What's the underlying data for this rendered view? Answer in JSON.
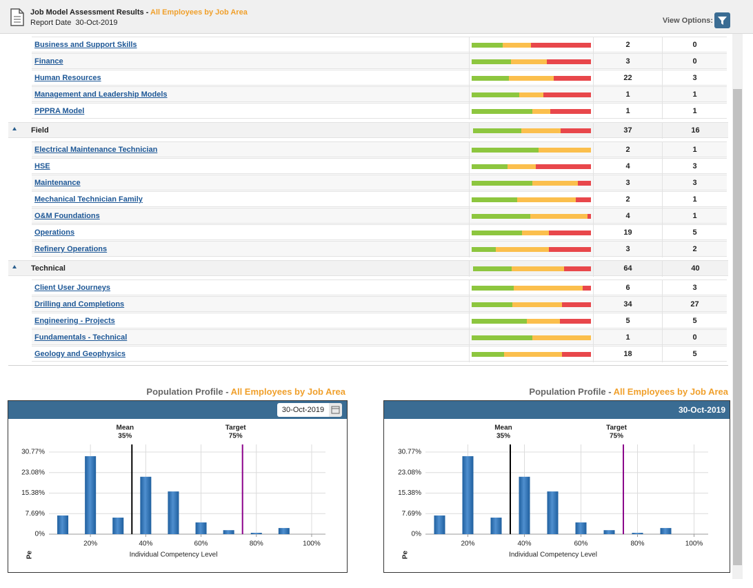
{
  "header": {
    "title": "Job Model Assessment Results -",
    "highlight": "All Employees by Job Area",
    "date_label": "Report Date",
    "date": "30-Oct-2019",
    "view_options": "View Options:"
  },
  "table": {
    "colors": [
      "#8dc63f",
      "#fbbf4d",
      "#e8474b"
    ],
    "rows": [
      {
        "label": "Business and Support Skills",
        "group": false,
        "distribution": [
          26,
          24,
          50
        ],
        "count": 2,
        "value2": 0
      },
      {
        "label": "Finance",
        "group": false,
        "distribution": [
          33,
          30,
          37
        ],
        "count": 3,
        "value2": 0
      },
      {
        "label": "Human Resources",
        "group": false,
        "distribution": [
          31,
          38,
          31
        ],
        "count": 22,
        "value2": 3
      },
      {
        "label": "Management and Leadership Models",
        "group": false,
        "distribution": [
          40,
          20,
          40
        ],
        "count": 1,
        "value2": 1
      },
      {
        "label": "PPPRA Model",
        "group": false,
        "distribution": [
          51,
          15,
          34
        ],
        "count": 1,
        "value2": 1
      },
      {
        "label": "Field",
        "group": true,
        "distribution": [
          41,
          33,
          26
        ],
        "count": 37,
        "value2": 16
      },
      {
        "label": "Electrical Maintenance Technician",
        "group": false,
        "distribution": [
          56,
          44,
          0
        ],
        "count": 2,
        "value2": 1
      },
      {
        "label": "HSE",
        "group": false,
        "distribution": [
          30,
          24,
          46
        ],
        "count": 4,
        "value2": 3
      },
      {
        "label": "Maintenance",
        "group": false,
        "distribution": [
          51,
          38,
          11
        ],
        "count": 3,
        "value2": 3
      },
      {
        "label": "Mechanical Technician Family",
        "group": false,
        "distribution": [
          38,
          49,
          13
        ],
        "count": 2,
        "value2": 1
      },
      {
        "label": "O&M Foundations",
        "group": false,
        "distribution": [
          49,
          48,
          3
        ],
        "count": 4,
        "value2": 1
      },
      {
        "label": "Operations",
        "group": false,
        "distribution": [
          42,
          23,
          35
        ],
        "count": 19,
        "value2": 5
      },
      {
        "label": "Refinery Operations",
        "group": false,
        "distribution": [
          20,
          45,
          35
        ],
        "count": 3,
        "value2": 2
      },
      {
        "label": "Technical",
        "group": true,
        "distribution": [
          33,
          44,
          23
        ],
        "count": 64,
        "value2": 40
      },
      {
        "label": "Client User Journeys",
        "group": false,
        "distribution": [
          35,
          58,
          7
        ],
        "count": 6,
        "value2": 3
      },
      {
        "label": "Drilling and Completions",
        "group": false,
        "distribution": [
          34,
          42,
          24
        ],
        "count": 34,
        "value2": 27
      },
      {
        "label": "Engineering - Projects",
        "group": false,
        "distribution": [
          46,
          28,
          26
        ],
        "count": 5,
        "value2": 5
      },
      {
        "label": "Fundamentals - Technical",
        "group": false,
        "distribution": [
          51,
          49,
          0
        ],
        "count": 1,
        "value2": 0
      },
      {
        "label": "Geology and Geophysics",
        "group": false,
        "distribution": [
          27,
          49,
          24
        ],
        "count": 18,
        "value2": 5
      }
    ]
  },
  "chart_data": [
    {
      "type": "bar",
      "title": "Population Profile -",
      "highlight": "All Employees by Job Area",
      "date": "30-Oct-2019",
      "date_input": true,
      "x": [
        10,
        20,
        30,
        40,
        50,
        60,
        70,
        80,
        90
      ],
      "values": [
        7.0,
        29.2,
        6.2,
        21.5,
        16.0,
        4.4,
        1.5,
        0.5,
        2.3
      ],
      "color": "#1f5f9e",
      "xlim": [
        5,
        105
      ],
      "xticks": [
        {
          "value": 20,
          "label": "20%"
        },
        {
          "value": 40,
          "label": "40%"
        },
        {
          "value": 60,
          "label": "60%"
        },
        {
          "value": 80,
          "label": "80%"
        },
        {
          "value": 100,
          "label": "100%"
        }
      ],
      "ylim": [
        0,
        33.6
      ],
      "yticks": [
        {
          "value": 0,
          "label": "0%"
        },
        {
          "value": 7.69,
          "label": "7.69%"
        },
        {
          "value": 15.38,
          "label": "15.38%"
        },
        {
          "value": 23.08,
          "label": "23.08%"
        },
        {
          "value": 30.77,
          "label": "30.77%"
        }
      ],
      "grid": true,
      "xlabel": "Individual Competency Level",
      "ylabel": "Pe",
      "annotations": [
        {
          "label": "Mean",
          "value": 35,
          "value_label": "35%",
          "color": "#000000"
        },
        {
          "label": "Target",
          "value": 75,
          "value_label": "75%",
          "color": "#8b008b"
        }
      ]
    },
    {
      "type": "bar",
      "title": "Population Profile -",
      "highlight": "All Employees by Job Area",
      "date": "30-Oct-2019",
      "date_input": false,
      "x": [
        10,
        20,
        30,
        40,
        50,
        60,
        70,
        80,
        90
      ],
      "values": [
        7.0,
        29.2,
        6.2,
        21.5,
        16.0,
        4.4,
        1.5,
        0.5,
        2.3
      ],
      "color": "#1f5f9e",
      "xlim": [
        5,
        105
      ],
      "xticks": [
        {
          "value": 20,
          "label": "20%"
        },
        {
          "value": 40,
          "label": "40%"
        },
        {
          "value": 60,
          "label": "60%"
        },
        {
          "value": 80,
          "label": "80%"
        },
        {
          "value": 100,
          "label": "100%"
        }
      ],
      "ylim": [
        0,
        33.6
      ],
      "yticks": [
        {
          "value": 0,
          "label": "0%"
        },
        {
          "value": 7.69,
          "label": "7.69%"
        },
        {
          "value": 15.38,
          "label": "15.38%"
        },
        {
          "value": 23.08,
          "label": "23.08%"
        },
        {
          "value": 30.77,
          "label": "30.77%"
        }
      ],
      "grid": true,
      "xlabel": "Individual Competency Level",
      "ylabel": "Pe",
      "annotations": [
        {
          "label": "Mean",
          "value": 35,
          "value_label": "35%",
          "color": "#000000"
        },
        {
          "label": "Target",
          "value": 75,
          "value_label": "75%",
          "color": "#8b008b"
        }
      ]
    }
  ]
}
